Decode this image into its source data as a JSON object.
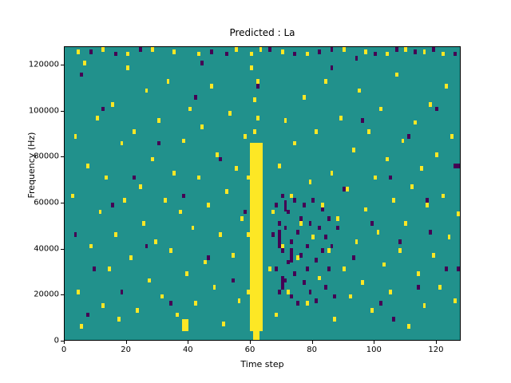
{
  "chart_data": {
    "type": "heatmap",
    "title": "Predicted : La",
    "xlabel": "Time step",
    "ylabel": "Frequency (Hz)",
    "x_bins": 128,
    "y_bins": 128,
    "xlim": [
      0,
      128
    ],
    "ylim": [
      0,
      128000
    ],
    "x_ticks": [
      0,
      20,
      40,
      60,
      80,
      100,
      120
    ],
    "y_ticks": [
      0,
      20000,
      40000,
      60000,
      80000,
      100000,
      120000
    ],
    "colors": {
      "background_class": "#21918c",
      "active_class": "#fde725",
      "inactive_class": "#440154"
    },
    "legend": "none",
    "grid": "off",
    "cells": {
      "yellow": [
        [
          60,
          4,
          4,
          82
        ],
        [
          61,
          0,
          2,
          5
        ],
        [
          38,
          4,
          2,
          5
        ],
        [
          61,
          90
        ],
        [
          62,
          96
        ],
        [
          61,
          104
        ],
        [
          62,
          112
        ],
        [
          60,
          118
        ],
        [
          59,
          20
        ],
        [
          59,
          45
        ],
        [
          59,
          70
        ],
        [
          2,
          62
        ],
        [
          3,
          88
        ],
        [
          4,
          20
        ],
        [
          5,
          5
        ],
        [
          6,
          120
        ],
        [
          7,
          75
        ],
        [
          8,
          40
        ],
        [
          10,
          96
        ],
        [
          11,
          55
        ],
        [
          12,
          14
        ],
        [
          13,
          70
        ],
        [
          14,
          30
        ],
        [
          15,
          102
        ],
        [
          16,
          45
        ],
        [
          17,
          8
        ],
        [
          18,
          85
        ],
        [
          19,
          60
        ],
        [
          20,
          118
        ],
        [
          21,
          35
        ],
        [
          22,
          90
        ],
        [
          23,
          12
        ],
        [
          24,
          66
        ],
        [
          25,
          50
        ],
        [
          26,
          108
        ],
        [
          27,
          25
        ],
        [
          28,
          78
        ],
        [
          29,
          42
        ],
        [
          30,
          95
        ],
        [
          31,
          18
        ],
        [
          32,
          60
        ],
        [
          33,
          112
        ],
        [
          34,
          38
        ],
        [
          35,
          72
        ],
        [
          36,
          10
        ],
        [
          37,
          55
        ],
        [
          38,
          86
        ],
        [
          39,
          28
        ],
        [
          40,
          100
        ],
        [
          41,
          48
        ],
        [
          42,
          15
        ],
        [
          43,
          70
        ],
        [
          44,
          92
        ],
        [
          45,
          33
        ],
        [
          46,
          58
        ],
        [
          47,
          110
        ],
        [
          48,
          22
        ],
        [
          49,
          80
        ],
        [
          50,
          45
        ],
        [
          51,
          6
        ],
        [
          52,
          64
        ],
        [
          53,
          98
        ],
        [
          54,
          36
        ],
        [
          55,
          74
        ],
        [
          56,
          16
        ],
        [
          57,
          52
        ],
        [
          58,
          88
        ],
        [
          66,
          30
        ],
        [
          67,
          55
        ],
        [
          68,
          10
        ],
        [
          69,
          75
        ],
        [
          70,
          40
        ],
        [
          71,
          95
        ],
        [
          72,
          20
        ],
        [
          73,
          62
        ],
        [
          74,
          85
        ],
        [
          75,
          35
        ],
        [
          76,
          50
        ],
        [
          77,
          105
        ],
        [
          78,
          15
        ],
        [
          79,
          68
        ],
        [
          80,
          44
        ],
        [
          81,
          90
        ],
        [
          82,
          26
        ],
        [
          83,
          58
        ],
        [
          84,
          112
        ],
        [
          85,
          38
        ],
        [
          86,
          72
        ],
        [
          87,
          8
        ],
        [
          88,
          52
        ],
        [
          89,
          96
        ],
        [
          90,
          30
        ],
        [
          91,
          65
        ],
        [
          92,
          18
        ],
        [
          93,
          82
        ],
        [
          94,
          42
        ],
        [
          95,
          108
        ],
        [
          96,
          24
        ],
        [
          97,
          56
        ],
        [
          98,
          90
        ],
        [
          99,
          12
        ],
        [
          100,
          70
        ],
        [
          101,
          46
        ],
        [
          102,
          100
        ],
        [
          103,
          32
        ],
        [
          104,
          78
        ],
        [
          105,
          20
        ],
        [
          106,
          60
        ],
        [
          107,
          115
        ],
        [
          108,
          38
        ],
        [
          109,
          86
        ],
        [
          110,
          50
        ],
        [
          111,
          5
        ],
        [
          112,
          66
        ],
        [
          113,
          94
        ],
        [
          114,
          28
        ],
        [
          115,
          74
        ],
        [
          116,
          14
        ],
        [
          117,
          58
        ],
        [
          118,
          102
        ],
        [
          119,
          36
        ],
        [
          120,
          80
        ],
        [
          121,
          22
        ],
        [
          122,
          62
        ],
        [
          123,
          110
        ],
        [
          124,
          44
        ],
        [
          125,
          88
        ],
        [
          126,
          16
        ],
        [
          127,
          54
        ],
        [
          4,
          125
        ],
        [
          12,
          126
        ],
        [
          20,
          124
        ],
        [
          28,
          126
        ],
        [
          35,
          125
        ],
        [
          43,
          124
        ],
        [
          55,
          126
        ],
        [
          60,
          124
        ],
        [
          63,
          126
        ],
        [
          70,
          125
        ],
        [
          78,
          124
        ],
        [
          90,
          126
        ],
        [
          97,
          125
        ],
        [
          104,
          124
        ],
        [
          110,
          126
        ],
        [
          116,
          125
        ],
        [
          122,
          124
        ]
      ],
      "purple": [
        [
          67,
          45
        ],
        [
          68,
          30
        ],
        [
          68,
          58
        ],
        [
          69,
          20
        ],
        [
          69,
          50
        ],
        [
          70,
          38
        ],
        [
          70,
          62
        ],
        [
          71,
          25
        ],
        [
          71,
          48
        ],
        [
          72,
          55
        ],
        [
          72,
          33
        ],
        [
          73,
          42
        ],
        [
          73,
          18
        ],
        [
          74,
          60
        ],
        [
          74,
          28
        ],
        [
          75,
          46
        ],
        [
          75,
          15
        ],
        [
          76,
          52
        ],
        [
          76,
          36
        ],
        [
          77,
          24
        ],
        [
          77,
          58
        ],
        [
          78,
          40
        ],
        [
          78,
          30
        ],
        [
          79,
          50
        ],
        [
          79,
          20
        ],
        [
          80,
          44
        ],
        [
          80,
          60
        ],
        [
          81,
          34
        ],
        [
          81,
          16
        ],
        [
          82,
          48
        ],
        [
          82,
          26
        ],
        [
          83,
          56
        ],
        [
          83,
          38
        ],
        [
          84,
          22
        ],
        [
          84,
          44
        ],
        [
          85,
          52
        ],
        [
          85,
          30
        ],
        [
          86,
          40
        ],
        [
          87,
          18
        ],
        [
          88,
          48
        ],
        [
          69,
          40,
          1,
          8
        ],
        [
          70,
          22,
          1,
          6
        ],
        [
          71,
          56,
          1,
          5
        ],
        [
          73,
          34,
          1,
          6
        ],
        [
          5,
          115
        ],
        [
          9,
          30
        ],
        [
          12,
          100
        ],
        [
          15,
          58
        ],
        [
          18,
          20
        ],
        [
          22,
          70
        ],
        [
          26,
          40
        ],
        [
          30,
          85
        ],
        [
          34,
          15
        ],
        [
          38,
          62
        ],
        [
          42,
          105
        ],
        [
          46,
          35
        ],
        [
          50,
          78
        ],
        [
          54,
          25
        ],
        [
          58,
          55
        ],
        [
          62,
          110
        ],
        [
          90,
          65
        ],
        [
          93,
          35
        ],
        [
          96,
          95
        ],
        [
          99,
          50
        ],
        [
          102,
          15
        ],
        [
          105,
          70
        ],
        [
          108,
          42
        ],
        [
          111,
          88
        ],
        [
          114,
          22
        ],
        [
          117,
          60
        ],
        [
          120,
          100
        ],
        [
          123,
          30
        ],
        [
          126,
          75
        ],
        [
          3,
          45
        ],
        [
          7,
          10
        ],
        [
          44,
          120
        ],
        [
          86,
          118
        ],
        [
          94,
          122
        ],
        [
          106,
          8
        ],
        [
          118,
          46
        ],
        [
          127,
          30
        ],
        [
          127,
          75
        ],
        [
          8,
          125
        ],
        [
          16,
          124
        ],
        [
          24,
          126
        ],
        [
          47,
          125
        ],
        [
          52,
          124
        ],
        [
          66,
          126
        ],
        [
          74,
          124
        ],
        [
          82,
          125
        ],
        [
          86,
          126
        ],
        [
          100,
          124
        ],
        [
          107,
          126
        ],
        [
          113,
          125
        ],
        [
          119,
          126
        ],
        [
          126,
          124
        ]
      ]
    }
  }
}
